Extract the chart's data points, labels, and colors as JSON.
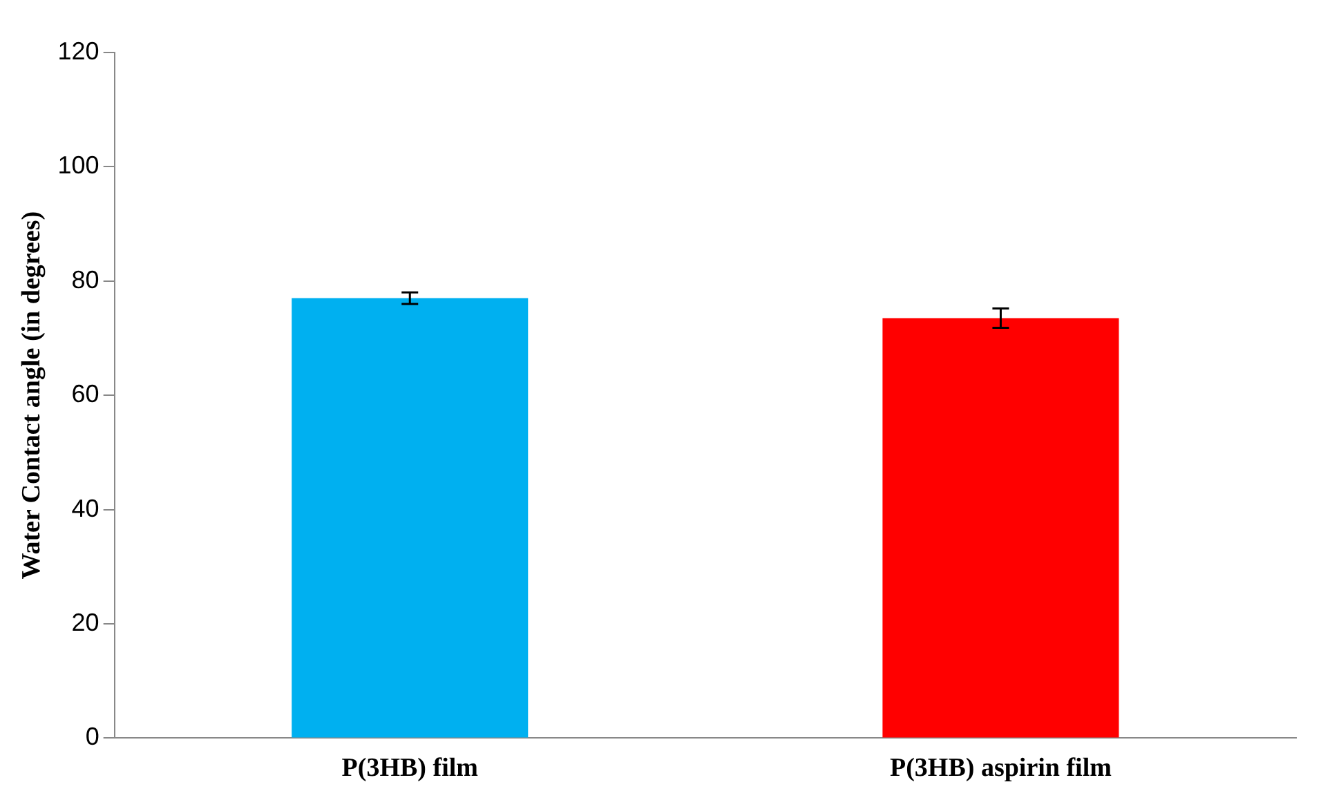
{
  "chart_data": {
    "type": "bar",
    "ylabel": "Water Contact angle (in degrees)",
    "categories": [
      "P(3HB) film",
      "P(3HB) aspirin film"
    ],
    "values": [
      77,
      73.5
    ],
    "colors": [
      "#00b0f0",
      "#ff0000"
    ],
    "errors": [
      1,
      1.7
    ],
    "ylim": [
      0,
      120
    ],
    "yticks": [
      0,
      20,
      40,
      60,
      80,
      100,
      120
    ],
    "grid": false,
    "legend": false
  }
}
